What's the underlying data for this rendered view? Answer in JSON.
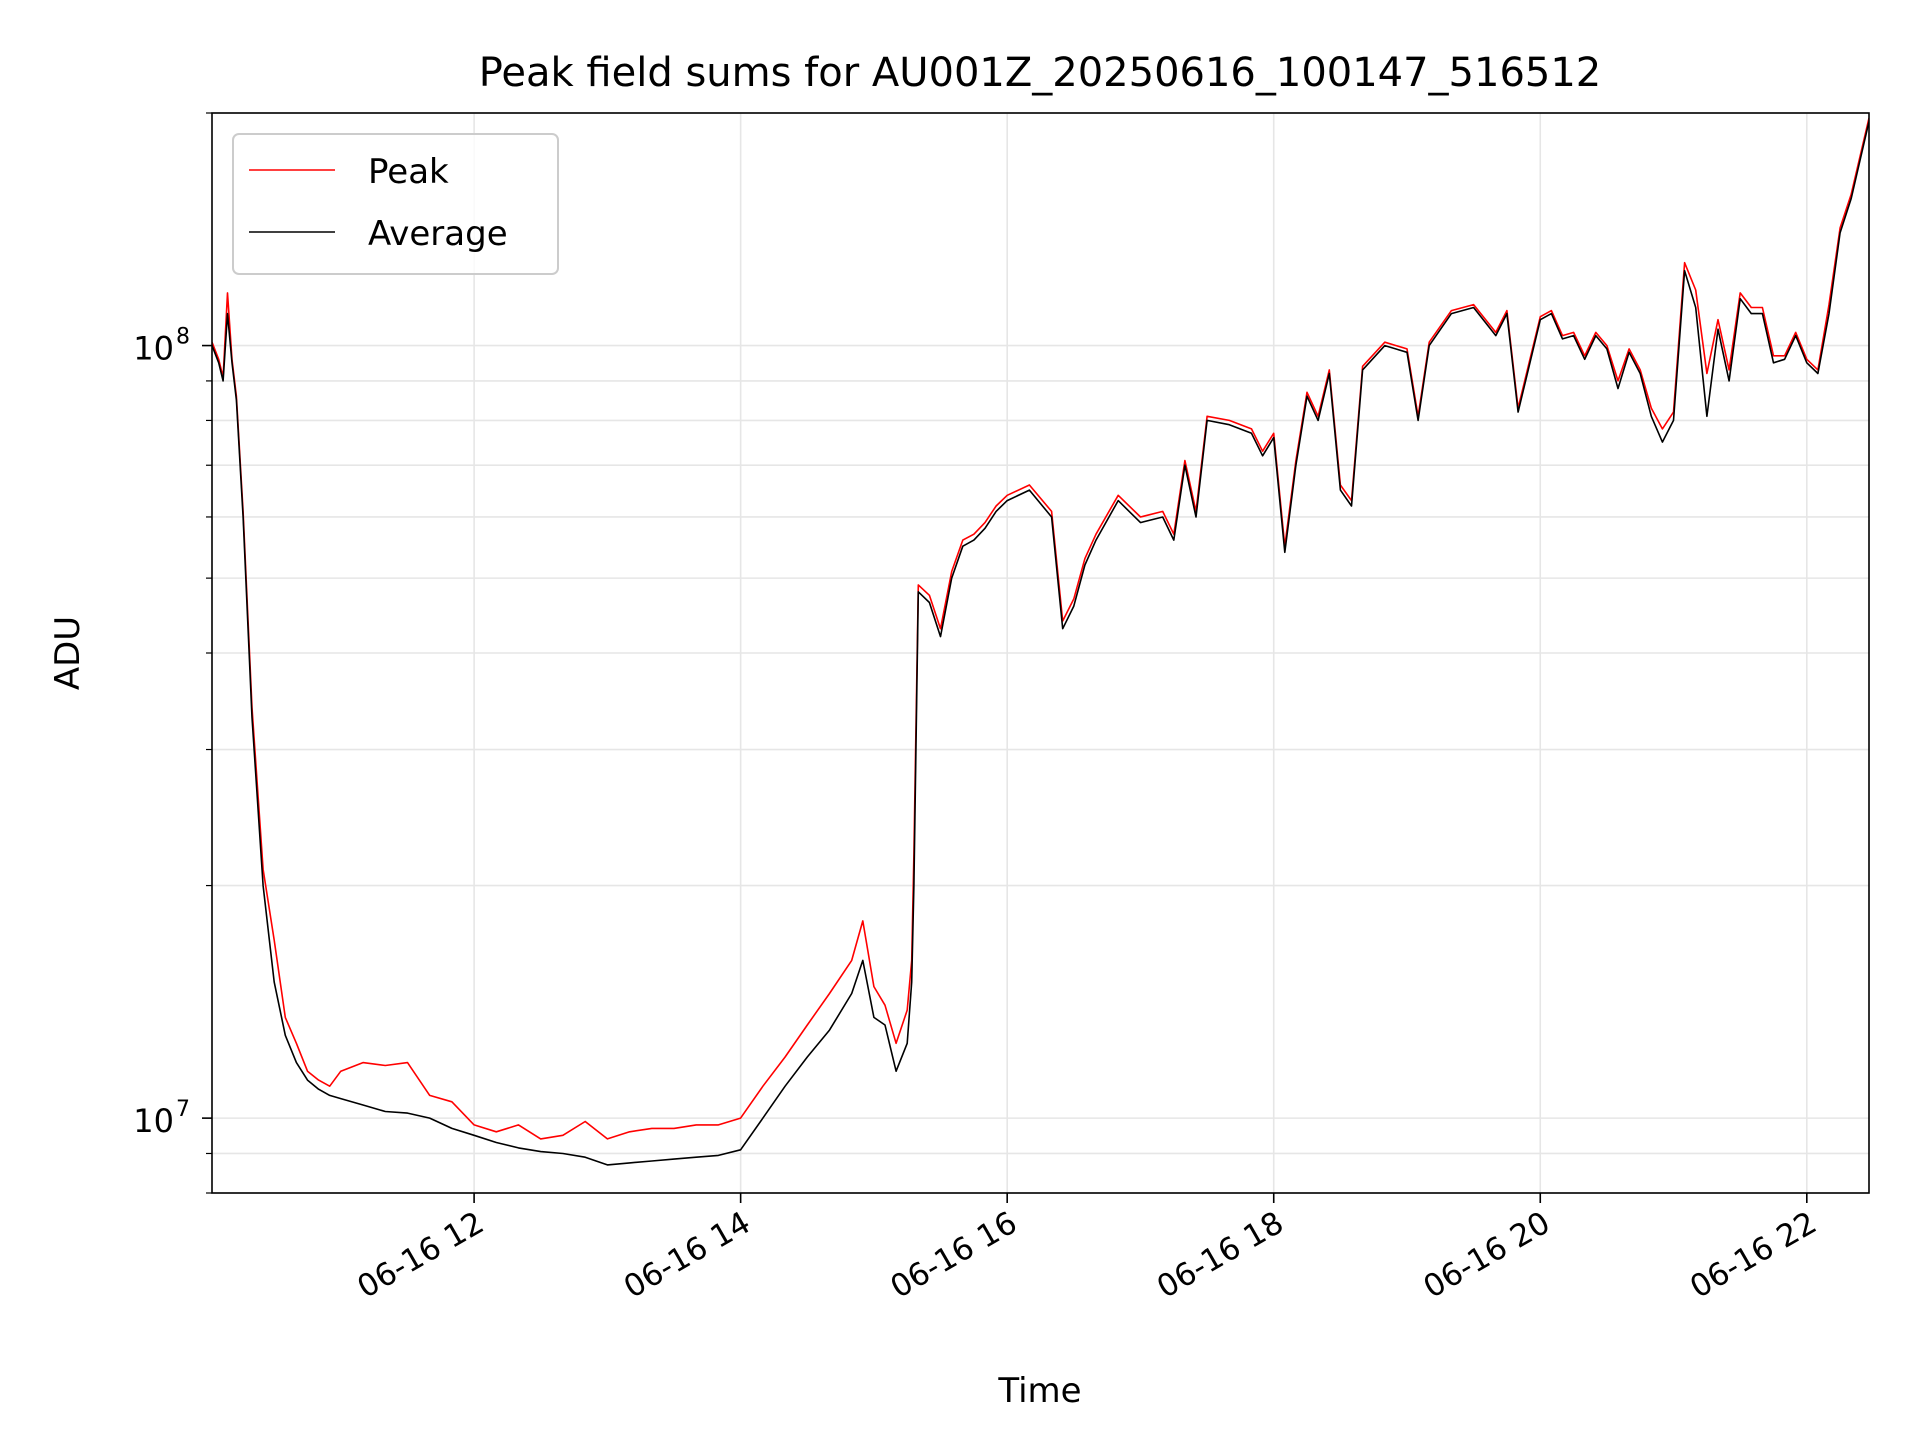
{
  "chart_data": {
    "type": "line",
    "title": "Peak field sums for AU001Z_20250616_100147_516512",
    "xlabel": "Time",
    "ylabel": "ADU",
    "yscale": "log",
    "ylim": [
      8000000,
      200000000
    ],
    "xlim": [
      "2025-06-16T10:02",
      "2025-06-16T22:28"
    ],
    "grid": true,
    "legend_position": "upper-left",
    "x_ticks": [
      {
        "x": "2025-06-16T12:00",
        "label": "06-16 12"
      },
      {
        "x": "2025-06-16T14:00",
        "label": "06-16 14"
      },
      {
        "x": "2025-06-16T16:00",
        "label": "06-16 16"
      },
      {
        "x": "2025-06-16T18:00",
        "label": "06-16 18"
      },
      {
        "x": "2025-06-16T20:00",
        "label": "06-16 20"
      },
      {
        "x": "2025-06-16T22:00",
        "label": "06-16 22"
      }
    ],
    "y_ticks": [
      {
        "value": 10000000,
        "base": "10",
        "exp": "7"
      },
      {
        "value": 100000000,
        "base": "10",
        "exp": "8"
      }
    ],
    "series": [
      {
        "name": "Average",
        "color": "#000000",
        "x": [
          "2025-06-16T10:02",
          "2025-06-16T10:05",
          "2025-06-16T10:07",
          "2025-06-16T10:09",
          "2025-06-16T10:11",
          "2025-06-16T10:13",
          "2025-06-16T10:16",
          "2025-06-16T10:20",
          "2025-06-16T10:25",
          "2025-06-16T10:30",
          "2025-06-16T10:35",
          "2025-06-16T10:40",
          "2025-06-16T10:45",
          "2025-06-16T10:50",
          "2025-06-16T10:55",
          "2025-06-16T11:00",
          "2025-06-16T11:10",
          "2025-06-16T11:20",
          "2025-06-16T11:30",
          "2025-06-16T11:40",
          "2025-06-16T11:50",
          "2025-06-16T12:00",
          "2025-06-16T12:10",
          "2025-06-16T12:20",
          "2025-06-16T12:30",
          "2025-06-16T12:40",
          "2025-06-16T12:50",
          "2025-06-16T13:00",
          "2025-06-16T13:10",
          "2025-06-16T13:20",
          "2025-06-16T13:30",
          "2025-06-16T13:40",
          "2025-06-16T13:50",
          "2025-06-16T14:00",
          "2025-06-16T14:10",
          "2025-06-16T14:20",
          "2025-06-16T14:30",
          "2025-06-16T14:40",
          "2025-06-16T14:50",
          "2025-06-16T14:55",
          "2025-06-16T15:00",
          "2025-06-16T15:05",
          "2025-06-16T15:10",
          "2025-06-16T15:15",
          "2025-06-16T15:17",
          "2025-06-16T15:18",
          "2025-06-16T15:20",
          "2025-06-16T15:25",
          "2025-06-16T15:30",
          "2025-06-16T15:35",
          "2025-06-16T15:40",
          "2025-06-16T15:45",
          "2025-06-16T15:50",
          "2025-06-16T15:55",
          "2025-06-16T16:00",
          "2025-06-16T16:10",
          "2025-06-16T16:20",
          "2025-06-16T16:25",
          "2025-06-16T16:30",
          "2025-06-16T16:35",
          "2025-06-16T16:40",
          "2025-06-16T16:50",
          "2025-06-16T17:00",
          "2025-06-16T17:10",
          "2025-06-16T17:15",
          "2025-06-16T17:20",
          "2025-06-16T17:25",
          "2025-06-16T17:30",
          "2025-06-16T17:40",
          "2025-06-16T17:50",
          "2025-06-16T17:55",
          "2025-06-16T18:00",
          "2025-06-16T18:05",
          "2025-06-16T18:10",
          "2025-06-16T18:15",
          "2025-06-16T18:20",
          "2025-06-16T18:25",
          "2025-06-16T18:30",
          "2025-06-16T18:35",
          "2025-06-16T18:40",
          "2025-06-16T18:50",
          "2025-06-16T19:00",
          "2025-06-16T19:05",
          "2025-06-16T19:10",
          "2025-06-16T19:20",
          "2025-06-16T19:30",
          "2025-06-16T19:40",
          "2025-06-16T19:45",
          "2025-06-16T19:50",
          "2025-06-16T20:00",
          "2025-06-16T20:05",
          "2025-06-16T20:10",
          "2025-06-16T20:15",
          "2025-06-16T20:20",
          "2025-06-16T20:25",
          "2025-06-16T20:30",
          "2025-06-16T20:35",
          "2025-06-16T20:40",
          "2025-06-16T20:45",
          "2025-06-16T20:50",
          "2025-06-16T20:55",
          "2025-06-16T21:00",
          "2025-06-16T21:05",
          "2025-06-16T21:10",
          "2025-06-16T21:15",
          "2025-06-16T21:20",
          "2025-06-16T21:25",
          "2025-06-16T21:30",
          "2025-06-16T21:35",
          "2025-06-16T21:40",
          "2025-06-16T21:45",
          "2025-06-16T21:50",
          "2025-06-16T21:55",
          "2025-06-16T22:00",
          "2025-06-16T22:05",
          "2025-06-16T22:10",
          "2025-06-16T22:15",
          "2025-06-16T22:20",
          "2025-06-16T22:28"
        ],
        "y": [
          100000000,
          95000000,
          90000000,
          110000000,
          95000000,
          85000000,
          60000000,
          33000000,
          20000000,
          15000000,
          12800000,
          11800000,
          11200000,
          10900000,
          10700000,
          10600000,
          10400000,
          10200000,
          10150000,
          10000000,
          9700000,
          9500000,
          9300000,
          9150000,
          9050000,
          9000000,
          8900000,
          8700000,
          8750000,
          8800000,
          8850000,
          8900000,
          8950000,
          9100000,
          10000000,
          11000000,
          12000000,
          13000000,
          14500000,
          16000000,
          13500000,
          13200000,
          11500000,
          12500000,
          15000000,
          20000000,
          48000000,
          46500000,
          42000000,
          50000000,
          55000000,
          56000000,
          58000000,
          61000000,
          63000000,
          65000000,
          60000000,
          43000000,
          46000000,
          52000000,
          56000000,
          63000000,
          59000000,
          60000000,
          56000000,
          70000000,
          60000000,
          80000000,
          79000000,
          77000000,
          72000000,
          76000000,
          54000000,
          70000000,
          86000000,
          80000000,
          92000000,
          65000000,
          62000000,
          93000000,
          100000000,
          98000000,
          80000000,
          100000000,
          110000000,
          112000000,
          103000000,
          110000000,
          82000000,
          108000000,
          110000000,
          102000000,
          103000000,
          96000000,
          103000000,
          99000000,
          88000000,
          98000000,
          92000000,
          81000000,
          75000000,
          80000000,
          125000000,
          112000000,
          81000000,
          105000000,
          90000000,
          115000000,
          110000000,
          110000000,
          95000000,
          96000000,
          103000000,
          95000000,
          92000000,
          110000000,
          140000000,
          155000000,
          195000000
        ]
      },
      {
        "name": "Peak",
        "color": "#ff0000",
        "x": [
          "2025-06-16T10:02",
          "2025-06-16T10:05",
          "2025-06-16T10:07",
          "2025-06-16T10:09",
          "2025-06-16T10:11",
          "2025-06-16T10:13",
          "2025-06-16T10:16",
          "2025-06-16T10:20",
          "2025-06-16T10:25",
          "2025-06-16T10:30",
          "2025-06-16T10:35",
          "2025-06-16T10:40",
          "2025-06-16T10:45",
          "2025-06-16T10:50",
          "2025-06-16T10:55",
          "2025-06-16T11:00",
          "2025-06-16T11:10",
          "2025-06-16T11:20",
          "2025-06-16T11:30",
          "2025-06-16T11:40",
          "2025-06-16T11:50",
          "2025-06-16T12:00",
          "2025-06-16T12:10",
          "2025-06-16T12:20",
          "2025-06-16T12:30",
          "2025-06-16T12:40",
          "2025-06-16T12:50",
          "2025-06-16T13:00",
          "2025-06-16T13:10",
          "2025-06-16T13:20",
          "2025-06-16T13:30",
          "2025-06-16T13:40",
          "2025-06-16T13:50",
          "2025-06-16T14:00",
          "2025-06-16T14:10",
          "2025-06-16T14:20",
          "2025-06-16T14:30",
          "2025-06-16T14:40",
          "2025-06-16T14:50",
          "2025-06-16T14:55",
          "2025-06-16T15:00",
          "2025-06-16T15:05",
          "2025-06-16T15:10",
          "2025-06-16T15:15",
          "2025-06-16T15:17",
          "2025-06-16T15:18",
          "2025-06-16T15:20",
          "2025-06-16T15:25",
          "2025-06-16T15:30",
          "2025-06-16T15:35",
          "2025-06-16T15:40",
          "2025-06-16T15:45",
          "2025-06-16T15:50",
          "2025-06-16T15:55",
          "2025-06-16T16:00",
          "2025-06-16T16:10",
          "2025-06-16T16:20",
          "2025-06-16T16:25",
          "2025-06-16T16:30",
          "2025-06-16T16:35",
          "2025-06-16T16:40",
          "2025-06-16T16:50",
          "2025-06-16T17:00",
          "2025-06-16T17:10",
          "2025-06-16T17:15",
          "2025-06-16T17:20",
          "2025-06-16T17:25",
          "2025-06-16T17:30",
          "2025-06-16T17:40",
          "2025-06-16T17:50",
          "2025-06-16T17:55",
          "2025-06-16T18:00",
          "2025-06-16T18:05",
          "2025-06-16T18:10",
          "2025-06-16T18:15",
          "2025-06-16T18:20",
          "2025-06-16T18:25",
          "2025-06-16T18:30",
          "2025-06-16T18:35",
          "2025-06-16T18:40",
          "2025-06-16T18:50",
          "2025-06-16T19:00",
          "2025-06-16T19:05",
          "2025-06-16T19:10",
          "2025-06-16T19:20",
          "2025-06-16T19:30",
          "2025-06-16T19:40",
          "2025-06-16T19:45",
          "2025-06-16T19:50",
          "2025-06-16T20:00",
          "2025-06-16T20:05",
          "2025-06-16T20:10",
          "2025-06-16T20:15",
          "2025-06-16T20:20",
          "2025-06-16T20:25",
          "2025-06-16T20:30",
          "2025-06-16T20:35",
          "2025-06-16T20:40",
          "2025-06-16T20:45",
          "2025-06-16T20:50",
          "2025-06-16T20:55",
          "2025-06-16T21:00",
          "2025-06-16T21:05",
          "2025-06-16T21:10",
          "2025-06-16T21:15",
          "2025-06-16T21:20",
          "2025-06-16T21:25",
          "2025-06-16T21:30",
          "2025-06-16T21:35",
          "2025-06-16T21:40",
          "2025-06-16T21:45",
          "2025-06-16T21:50",
          "2025-06-16T21:55",
          "2025-06-16T22:00",
          "2025-06-16T22:05",
          "2025-06-16T22:10",
          "2025-06-16T22:15",
          "2025-06-16T22:20",
          "2025-06-16T22:28"
        ],
        "y": [
          101000000,
          96000000,
          91000000,
          117000000,
          96000000,
          86000000,
          61000000,
          34000000,
          21000000,
          17000000,
          13500000,
          12500000,
          11500000,
          11200000,
          11000000,
          11500000,
          11800000,
          11700000,
          11800000,
          10700000,
          10500000,
          9800000,
          9600000,
          9800000,
          9400000,
          9500000,
          9900000,
          9400000,
          9600000,
          9700000,
          9700000,
          9800000,
          9800000,
          10000000,
          11000000,
          12000000,
          13200000,
          14500000,
          16000000,
          18000000,
          14800000,
          14000000,
          12500000,
          13800000,
          16000000,
          22000000,
          49000000,
          47500000,
          43000000,
          51000000,
          56000000,
          57000000,
          59000000,
          62000000,
          64000000,
          66000000,
          61000000,
          44000000,
          47000000,
          53000000,
          57000000,
          64000000,
          60000000,
          61000000,
          57000000,
          71000000,
          61000000,
          81000000,
          80000000,
          78000000,
          73000000,
          77000000,
          55000000,
          71000000,
          87000000,
          81000000,
          93000000,
          66000000,
          63000000,
          94000000,
          101000000,
          99000000,
          81000000,
          101000000,
          111000000,
          113000000,
          104000000,
          111000000,
          83000000,
          109000000,
          111000000,
          103000000,
          104000000,
          97000000,
          104000000,
          100000000,
          90000000,
          99000000,
          93000000,
          83000000,
          78000000,
          82000000,
          128000000,
          118000000,
          92000000,
          108000000,
          93000000,
          117000000,
          112000000,
          112000000,
          97000000,
          97000000,
          104000000,
          96000000,
          93000000,
          113000000,
          142000000,
          157000000,
          197000000
        ]
      }
    ]
  }
}
